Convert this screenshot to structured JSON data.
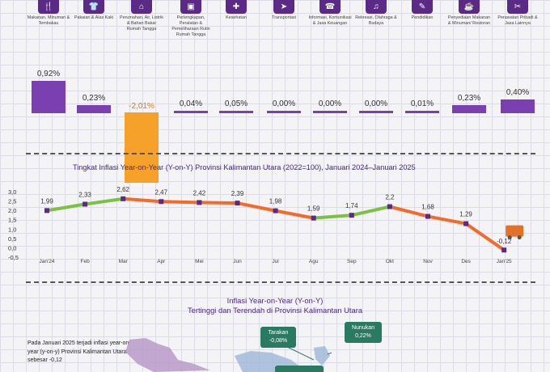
{
  "categories": [
    {
      "label": "Makanan, Minuman & Tembakau",
      "icon": "food-icon",
      "glyph": "🍴",
      "value": "0,92%",
      "v": 0.92
    },
    {
      "label": "Pakaian & Alas Kaki",
      "icon": "clothing-icon",
      "glyph": "👕",
      "value": "0,23%",
      "v": 0.23
    },
    {
      "label": "Perumahan, Air, Listrik & Bahan Bakar Rumah Tangga",
      "icon": "house-icon",
      "glyph": "⌂",
      "value": "-2,01%",
      "v": -2.01
    },
    {
      "label": "Perlengkapan, Peralatan & Pemeliharaan Rutin Rumah Tangga",
      "icon": "furniture-icon",
      "glyph": "▣",
      "value": "0,04%",
      "v": 0.04
    },
    {
      "label": "Kesehatan",
      "icon": "health-icon",
      "glyph": "✚",
      "value": "0,05%",
      "v": 0.05
    },
    {
      "label": "Transportasi",
      "icon": "transport-icon",
      "glyph": "➤",
      "value": "0,00%",
      "v": 0.0
    },
    {
      "label": "Informasi, Komunikasi & Jasa Keuangan",
      "icon": "phone-icon",
      "glyph": "☎",
      "value": "0,00%",
      "v": 0.0
    },
    {
      "label": "Rekreasi, Olahraga & Budaya",
      "icon": "recreation-icon",
      "glyph": "♫",
      "value": "0,00%",
      "v": 0.0
    },
    {
      "label": "Pendidikan",
      "icon": "education-icon",
      "glyph": "✎",
      "value": "0,01%",
      "v": 0.01
    },
    {
      "label": "Penyediaan Makanan & Minuman/ Restoran",
      "icon": "restaurant-icon",
      "glyph": "☕",
      "value": "0,23%",
      "v": 0.23
    },
    {
      "label": "Perawatan Pribadi & Jasa Lainnya",
      "icon": "tools-icon",
      "glyph": "✂",
      "value": "0,40%",
      "v": 0.4
    }
  ],
  "colors": {
    "purple": "#7a3fb0",
    "orange": "#f5a12a",
    "green": "#7cc242",
    "line_orange": "#f26b2a",
    "title": "#4a2a7a"
  },
  "chart_data": {
    "type": "line",
    "title": "Tingkat Inflasi Year-on-Year (Y-on-Y) Provinsi Kalimantan Utara (2022=100), Januari 2024–Januari 2025",
    "categories": [
      "Jan'24",
      "Feb",
      "Mar",
      "Apr",
      "Mei",
      "Jun",
      "Jul",
      "Agu",
      "Sep",
      "Okt",
      "Nov",
      "Des",
      "Jan'25"
    ],
    "values": [
      1.99,
      2.33,
      2.62,
      2.47,
      2.42,
      2.39,
      1.98,
      1.59,
      1.74,
      2.2,
      1.68,
      1.29,
      -0.12
    ],
    "value_labels": [
      "1,99",
      "2,33",
      "2,62",
      "2,47",
      "2,42",
      "2,39",
      "1,98",
      "1,59",
      "1,74",
      "2,2",
      "1,68",
      "1,29",
      "-0,12"
    ],
    "yticks": [
      "3,0",
      "2,5",
      "2,0",
      "1,5",
      "1,0",
      "0,5",
      "0,0",
      "-0,5"
    ],
    "ylim": [
      -0.5,
      3.0
    ]
  },
  "section3": {
    "title_line1": "Inflasi Year-on-Year (Y-on-Y)",
    "title_line2": "Tertinggi dan Terendah di Provinsi Kalimantan Utara",
    "paragraph": "Pada Januari 2025 terjadi inflasi year-on-year (y-on-y) Provinsi Kalimantan Utara sebesar -0,12",
    "tarakan_name": "Tarakan",
    "tarakan_value": "-0,08%",
    "nunukan_name": "Nunukan",
    "nunukan_value": "0,22%"
  }
}
